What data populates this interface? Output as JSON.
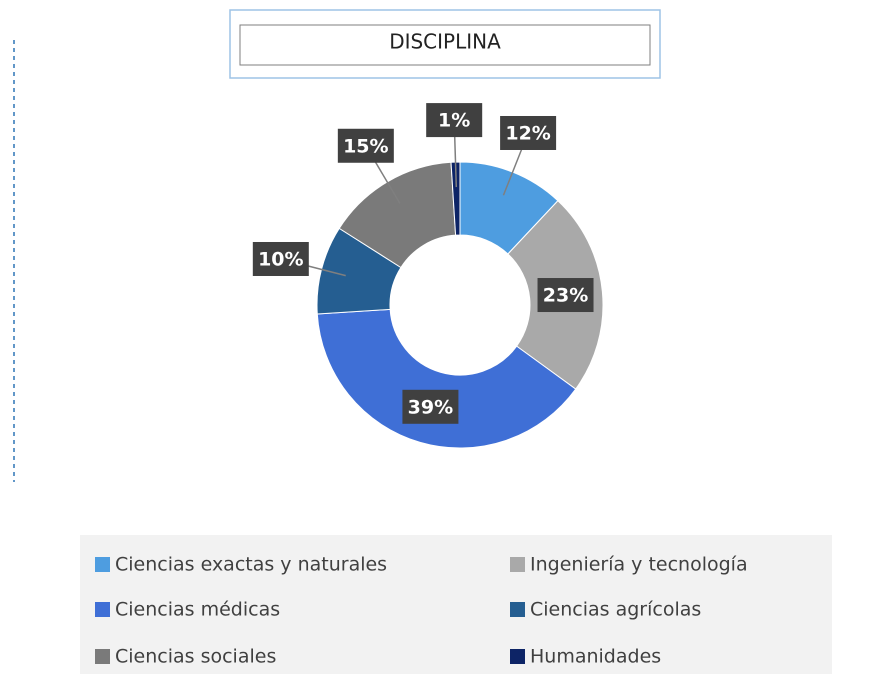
{
  "chart_data": {
    "type": "pie",
    "donut": true,
    "title": "DISCIPLINA",
    "categories": [
      "Ciencias exactas y naturales",
      "Ingeniería y tecnología",
      "Ciencias médicas",
      "Ciencias agrícolas",
      "Ciencias sociales",
      "Humanidades"
    ],
    "values": [
      12,
      23,
      39,
      10,
      15,
      1
    ],
    "value_labels": [
      "12%",
      "23%",
      "39%",
      "10%",
      "15%",
      "1%"
    ],
    "colors": [
      "#4e9de0",
      "#a9a9a9",
      "#3f6fd6",
      "#255e91",
      "#7a7a7a",
      "#0d2466"
    ],
    "legend": "bottom"
  }
}
